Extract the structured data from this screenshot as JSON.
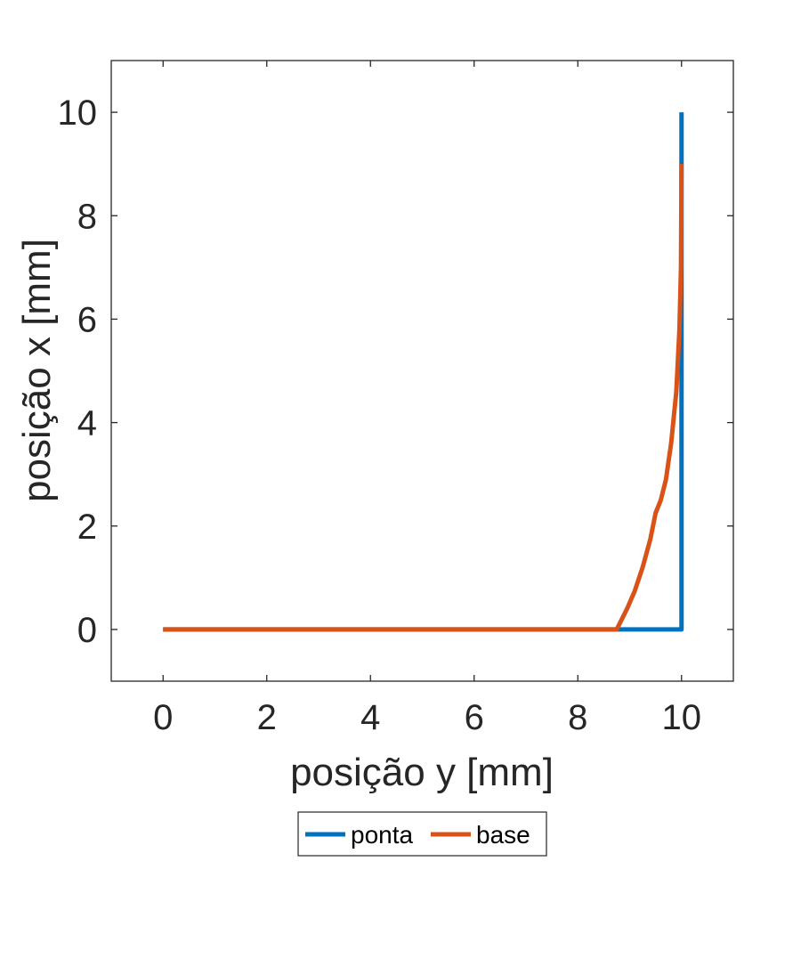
{
  "chart_data": {
    "type": "line",
    "title": "",
    "xlabel": "posição y [mm]",
    "ylabel": "posição x [mm]",
    "xlim": [
      -1,
      11
    ],
    "ylim": [
      -1,
      11
    ],
    "xticks": [
      0,
      2,
      4,
      6,
      8,
      10
    ],
    "yticks": [
      0,
      2,
      4,
      6,
      8,
      10
    ],
    "xtick_labels": [
      "0",
      "2",
      "4",
      "6",
      "8",
      "10"
    ],
    "ytick_labels": [
      "0",
      "2",
      "4",
      "6",
      "8",
      "10"
    ],
    "grid": false,
    "legend_position": "bottom-center",
    "series": [
      {
        "name": "ponta",
        "color": "#0072BD",
        "points": [
          [
            0,
            0
          ],
          [
            9.0,
            0
          ],
          [
            10,
            0
          ],
          [
            10,
            10
          ]
        ]
      },
      {
        "name": "base",
        "color": "#D95319",
        "points": [
          [
            0,
            0
          ],
          [
            8.75,
            0
          ],
          [
            8.8,
            0.1
          ],
          [
            8.95,
            0.4
          ],
          [
            9.1,
            0.75
          ],
          [
            9.25,
            1.2
          ],
          [
            9.4,
            1.75
          ],
          [
            9.5,
            2.25
          ],
          [
            9.6,
            2.5
          ],
          [
            9.7,
            2.9
          ],
          [
            9.8,
            3.6
          ],
          [
            9.9,
            4.6
          ],
          [
            9.96,
            5.8
          ],
          [
            9.99,
            7.0
          ],
          [
            10.0,
            9.0
          ]
        ]
      }
    ]
  }
}
